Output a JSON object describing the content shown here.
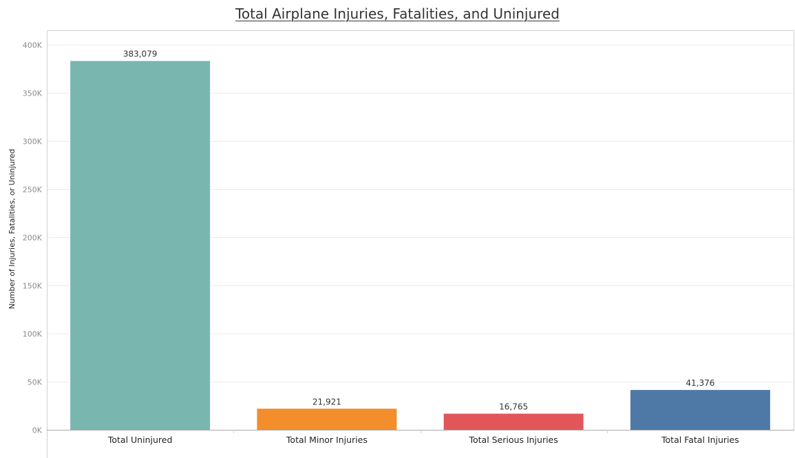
{
  "chart_data": {
    "type": "bar",
    "title": "Total Airplane Injuries, Fatalities, and Uninjured",
    "xlabel": "",
    "ylabel": "Number of Injuries, Fatalities, or Uninjured",
    "categories": [
      "Total Uninjured",
      "Total Minor Injuries",
      "Total Serious Injuries",
      "Total Fatal Injuries"
    ],
    "values": [
      383079,
      21921,
      16765,
      41376
    ],
    "value_labels": [
      "383,079",
      "21,921",
      "16,765",
      "41,376"
    ],
    "colors": [
      "#7ab6b0",
      "#f28e2b",
      "#e15759",
      "#4e79a7"
    ],
    "ylim": [
      0,
      400000
    ],
    "yticks": [
      0,
      50000,
      100000,
      150000,
      200000,
      250000,
      300000,
      350000,
      400000
    ],
    "ytick_labels": [
      "0K",
      "50K",
      "100K",
      "150K",
      "200K",
      "250K",
      "300K",
      "350K",
      "400K"
    ],
    "grid": true,
    "legend": "none"
  }
}
